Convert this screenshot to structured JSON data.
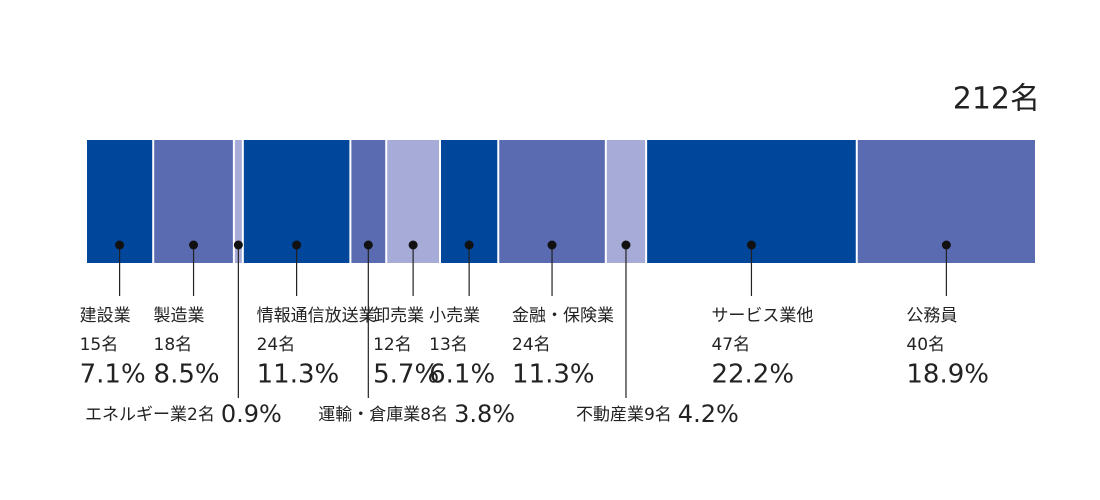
{
  "chart_data": {
    "type": "stacked-bar",
    "total": 212,
    "total_label": "212名",
    "categories": [
      "建設業",
      "製造業",
      "エネルギー業",
      "情報通信放送業",
      "運輸・倉庫業",
      "卸売業",
      "小売業",
      "金融・保険業",
      "不動産業",
      "サービス業他",
      "公務員"
    ],
    "values": [
      15,
      18,
      2,
      24,
      8,
      12,
      13,
      24,
      9,
      47,
      40
    ],
    "value_labels": [
      "15名",
      "18名",
      "2名",
      "24名",
      "8名",
      "12名",
      "13名",
      "24名",
      "9名",
      "47名",
      "40名"
    ],
    "percent_labels": [
      "7.1%",
      "8.5%",
      "0.9%",
      "11.3%",
      "3.8%",
      "5.7%",
      "6.1%",
      "11.3%",
      "4.2%",
      "22.2%",
      "18.9%"
    ],
    "colors": [
      "#00469b",
      "#5a6bb2",
      "#a7abd8",
      "#00469b",
      "#5a6bb2",
      "#a7abd8",
      "#00469b",
      "#5a6bb2",
      "#a7abd8",
      "#00469b",
      "#5a6bb2"
    ]
  }
}
